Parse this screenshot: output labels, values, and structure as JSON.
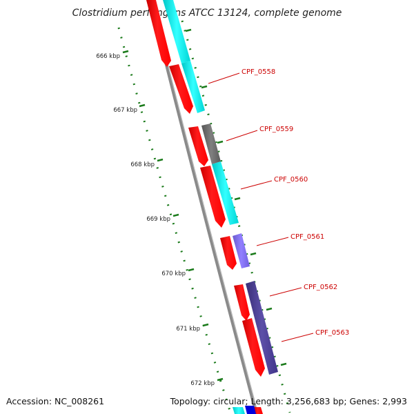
{
  "title": "Clostridium perfringens ATCC 13124, complete genome",
  "ticks": [
    "666 kbp",
    "667 kbp",
    "668 kbp",
    "669 kbp",
    "670 kbp",
    "671 kbp",
    "672 kbp"
  ],
  "genes": [
    "CPF_0558",
    "CPF_0559",
    "CPF_0560",
    "CPF_0561",
    "CPF_0562",
    "CPF_0563"
  ],
  "footer": {
    "accession": "Accession: NC_008261",
    "summary": "Topology: circular; Length: 3,256,683 bp; Genes: 2,993"
  },
  "colors": {
    "strand_red": "#ff0000",
    "cyan": "#00e0e0",
    "gray": "#666666",
    "lavender": "#7b68ee",
    "dark_slate": "#483d8b",
    "tick_green": "#1a7a1a",
    "backbone": "#888888",
    "label_red": "#cc0000"
  }
}
